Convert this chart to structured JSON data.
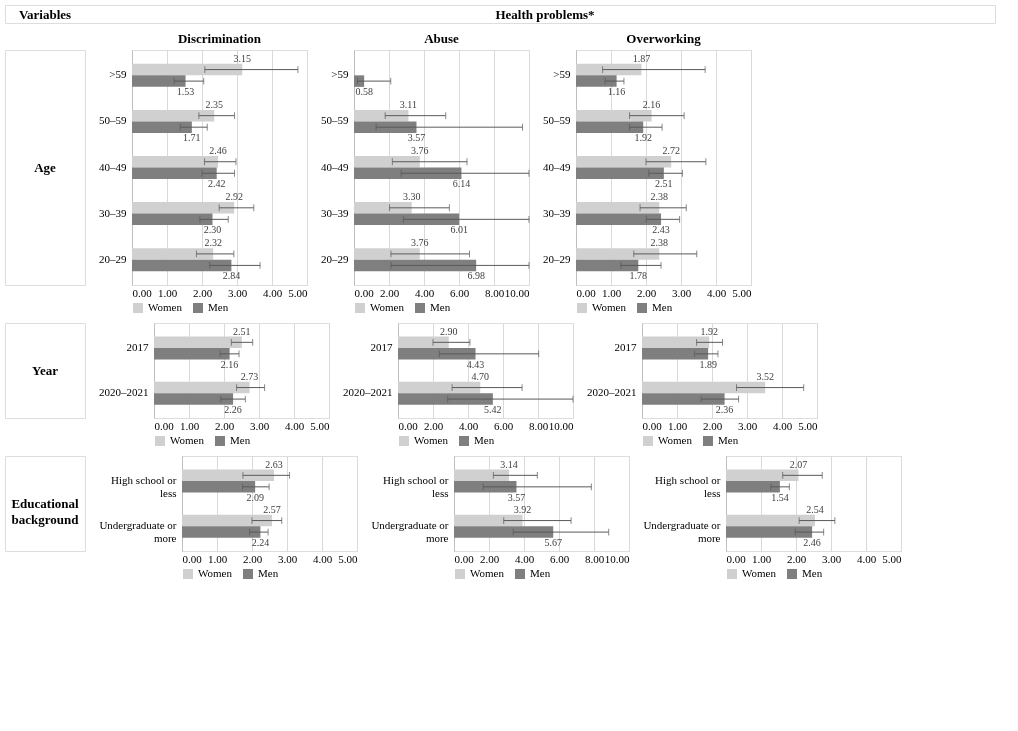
{
  "chart_data": [
    {
      "type": "bar",
      "orientation": "horizontal",
      "title": "Discrimination",
      "ylabel": "Age",
      "annotations": [
        "Variables",
        "Health problems*"
      ],
      "categories": [
        ">59",
        "50–59",
        "40–49",
        "30–39",
        "20–29"
      ],
      "series": [
        {
          "name": "Women",
          "color": "#d0d0d0",
          "values": [
            3.15,
            2.35,
            2.46,
            2.92,
            2.32
          ],
          "value_labels": [
            "3.15",
            "2.35",
            "2.46",
            "2.92",
            "2.32"
          ],
          "errors": [
            [
              2.08,
              4.74
            ],
            [
              1.91,
              2.93
            ],
            [
              2.07,
              2.97
            ],
            [
              2.49,
              3.48
            ],
            [
              1.84,
              2.91
            ]
          ]
        },
        {
          "name": "Men",
          "color": "#7f7f7f",
          "values": [
            1.53,
            1.71,
            2.42,
            2.3,
            2.84
          ],
          "value_labels": [
            "1.53",
            "1.71",
            "2.42",
            "2.30",
            "2.84"
          ],
          "errors": [
            [
              1.2,
              2.05
            ],
            [
              1.38,
              2.15
            ],
            [
              2.0,
              2.93
            ],
            [
              1.94,
              2.75
            ],
            [
              2.22,
              3.66
            ]
          ]
        }
      ],
      "xlim": [
        0,
        5
      ],
      "xticks": [
        {
          "value": 0,
          "label": "0.00"
        },
        {
          "value": 1,
          "label": "1.00"
        },
        {
          "value": 2,
          "label": "2.00"
        },
        {
          "value": 3,
          "label": "3.00"
        },
        {
          "value": 4,
          "label": "4.00"
        },
        {
          "value": 5,
          "label": "5.00"
        }
      ],
      "grid": "x",
      "legend": "bottom"
    },
    {
      "type": "bar",
      "orientation": "horizontal",
      "title": "Abuse",
      "categories": [
        ">59",
        "50–59",
        "40–49",
        "30–39",
        "20–29"
      ],
      "series": [
        {
          "name": "Women",
          "color": "#d0d0d0",
          "values": [
            null,
            3.11,
            3.76,
            3.3,
            3.76
          ],
          "value_labels": [
            null,
            "3.11",
            "3.76",
            "3.30",
            "3.76"
          ],
          "errors": [
            null,
            [
              1.78,
              5.24
            ],
            [
              2.19,
              6.46
            ],
            [
              2.03,
              5.45
            ],
            [
              2.11,
              6.6
            ]
          ]
        },
        {
          "name": "Men",
          "color": "#7f7f7f",
          "values": [
            0.58,
            3.57,
            6.14,
            6.01,
            6.98
          ],
          "value_labels": [
            "0.58",
            "3.57",
            "6.14",
            "6.01",
            "6.98"
          ],
          "errors": [
            [
              0.2,
              2.1
            ],
            [
              1.26,
              9.63
            ],
            [
              2.69,
              10
            ],
            [
              2.82,
              10
            ],
            [
              2.11,
              10
            ]
          ]
        }
      ],
      "xlim": [
        0,
        10
      ],
      "xticks": [
        {
          "value": 0,
          "label": "0.00"
        },
        {
          "value": 2,
          "label": "2.00"
        },
        {
          "value": 4,
          "label": "4.00"
        },
        {
          "value": 6,
          "label": "6.00"
        },
        {
          "value": 8,
          "label": "8.00"
        },
        {
          "value": 10,
          "label": "10.00"
        }
      ],
      "grid": "x",
      "legend": "bottom"
    },
    {
      "type": "bar",
      "orientation": "horizontal",
      "title": "Overworking",
      "categories": [
        ">59",
        "50–59",
        "40–49",
        "30–39",
        "20–29"
      ],
      "series": [
        {
          "name": "Women",
          "color": "#d0d0d0",
          "values": [
            1.87,
            2.16,
            2.72,
            2.38,
            2.38
          ],
          "value_labels": [
            "1.87",
            "2.16",
            "2.72",
            "2.38",
            "2.38"
          ],
          "errors": [
            [
              0.76,
              3.69
            ],
            [
              1.53,
              3.09
            ],
            [
              2.0,
              3.71
            ],
            [
              1.83,
              3.15
            ],
            [
              1.65,
              3.45
            ]
          ]
        },
        {
          "name": "Men",
          "color": "#7f7f7f",
          "values": [
            1.16,
            1.92,
            2.51,
            2.43,
            1.78
          ],
          "value_labels": [
            "1.16",
            "1.92",
            "2.51",
            "2.43",
            "1.78"
          ],
          "errors": [
            [
              0.83,
              1.37
            ],
            [
              1.53,
              2.46
            ],
            [
              2.08,
              3.04
            ],
            [
              2.01,
              2.96
            ],
            [
              1.28,
              2.43
            ]
          ]
        }
      ],
      "xlim": [
        0,
        5
      ],
      "xticks": [
        {
          "value": 0,
          "label": "0.00"
        },
        {
          "value": 1,
          "label": "1.00"
        },
        {
          "value": 2,
          "label": "2.00"
        },
        {
          "value": 3,
          "label": "3.00"
        },
        {
          "value": 4,
          "label": "4.00"
        },
        {
          "value": 5,
          "label": "5.00"
        }
      ],
      "grid": "x",
      "legend": "bottom"
    },
    {
      "type": "bar",
      "orientation": "horizontal",
      "ylabel": "Year",
      "categories": [
        "2017",
        "2020–2021"
      ],
      "series": [
        {
          "name": "Women",
          "color": "#d0d0d0",
          "values": [
            2.51,
            2.73
          ],
          "value_labels": [
            "2.51",
            "2.73"
          ],
          "errors": [
            [
              2.21,
              2.82
            ],
            [
              2.36,
              3.16
            ]
          ]
        },
        {
          "name": "Men",
          "color": "#7f7f7f",
          "values": [
            2.16,
            2.26
          ],
          "value_labels": [
            "2.16",
            "2.26"
          ],
          "errors": [
            [
              1.89,
              2.43
            ],
            [
              1.91,
              2.61
            ]
          ]
        }
      ],
      "xlim": [
        0,
        5
      ],
      "xticks": [
        {
          "value": 0,
          "label": "0.00"
        },
        {
          "value": 1,
          "label": "1.00"
        },
        {
          "value": 2,
          "label": "2.00"
        },
        {
          "value": 3,
          "label": "3.00"
        },
        {
          "value": 4,
          "label": "4.00"
        },
        {
          "value": 5,
          "label": "5.00"
        }
      ],
      "grid": "x",
      "legend": "bottom"
    },
    {
      "type": "bar",
      "orientation": "horizontal",
      "categories": [
        "2017",
        "2020–2021"
      ],
      "series": [
        {
          "name": "Women",
          "color": "#d0d0d0",
          "values": [
            2.9,
            4.7
          ],
          "value_labels": [
            "2.90",
            "4.70"
          ],
          "errors": [
            [
              2.0,
              4.11
            ],
            [
              3.09,
              7.09
            ]
          ]
        },
        {
          "name": "Men",
          "color": "#7f7f7f",
          "values": [
            4.43,
            5.42
          ],
          "value_labels": [
            "4.43",
            "5.42"
          ],
          "errors": [
            [
              2.36,
              8.04
            ],
            [
              2.84,
              10
            ]
          ]
        }
      ],
      "xlim": [
        0,
        10
      ],
      "xticks": [
        {
          "value": 0,
          "label": "0.00"
        },
        {
          "value": 2,
          "label": "2.00"
        },
        {
          "value": 4,
          "label": "4.00"
        },
        {
          "value": 6,
          "label": "6.00"
        },
        {
          "value": 8,
          "label": "8.00"
        },
        {
          "value": 10,
          "label": "10.00"
        }
      ],
      "grid": "x",
      "legend": "bottom"
    },
    {
      "type": "bar",
      "orientation": "horizontal",
      "categories": [
        "2017",
        "2020–2021"
      ],
      "series": [
        {
          "name": "Women",
          "color": "#d0d0d0",
          "values": [
            1.92,
            3.52
          ],
          "value_labels": [
            "1.92",
            "3.52"
          ],
          "errors": [
            [
              1.56,
              2.3
            ],
            [
              2.7,
              4.62
            ]
          ]
        },
        {
          "name": "Men",
          "color": "#7f7f7f",
          "values": [
            1.89,
            2.36
          ],
          "value_labels": [
            "1.89",
            "2.36"
          ],
          "errors": [
            [
              1.5,
              2.17
            ],
            [
              1.69,
              2.76
            ]
          ]
        }
      ],
      "xlim": [
        0,
        5
      ],
      "xticks": [
        {
          "value": 0,
          "label": "0.00"
        },
        {
          "value": 1,
          "label": "1.00"
        },
        {
          "value": 2,
          "label": "2.00"
        },
        {
          "value": 3,
          "label": "3.00"
        },
        {
          "value": 4,
          "label": "4.00"
        },
        {
          "value": 5,
          "label": "5.00"
        }
      ],
      "grid": "x",
      "legend": "bottom"
    },
    {
      "type": "bar",
      "orientation": "horizontal",
      "ylabel": "Educational background",
      "categories": [
        "High school or less",
        "Undergraduate or more"
      ],
      "series": [
        {
          "name": "Women",
          "color": "#d0d0d0",
          "values": [
            2.63,
            2.57
          ],
          "value_labels": [
            "2.63",
            "2.57"
          ],
          "errors": [
            [
              1.74,
              3.07
            ],
            [
              2.0,
              2.85
            ]
          ]
        },
        {
          "name": "Men",
          "color": "#7f7f7f",
          "values": [
            2.09,
            2.24
          ],
          "value_labels": [
            "2.09",
            "2.24"
          ],
          "errors": [
            [
              1.73,
              2.49
            ],
            [
              1.93,
              2.46
            ]
          ]
        }
      ],
      "xlim": [
        0,
        5
      ],
      "xticks": [
        {
          "value": 0,
          "label": "0.00"
        },
        {
          "value": 1,
          "label": "1.00"
        },
        {
          "value": 2,
          "label": "2.00"
        },
        {
          "value": 3,
          "label": "3.00"
        },
        {
          "value": 4,
          "label": "4.00"
        },
        {
          "value": 5,
          "label": "5.00"
        }
      ],
      "grid": "x",
      "legend": "bottom"
    },
    {
      "type": "bar",
      "orientation": "horizontal",
      "categories": [
        "High school or less",
        "Undergraduate or more"
      ],
      "series": [
        {
          "name": "Women",
          "color": "#d0d0d0",
          "values": [
            3.14,
            3.92
          ],
          "value_labels": [
            "3.14",
            "3.92"
          ],
          "errors": [
            [
              2.25,
              4.76
            ],
            [
              2.84,
              6.69
            ]
          ]
        },
        {
          "name": "Men",
          "color": "#7f7f7f",
          "values": [
            3.57,
            5.67
          ],
          "value_labels": [
            "3.57",
            "5.67"
          ],
          "errors": [
            [
              1.67,
              7.85
            ],
            [
              3.38,
              8.84
            ]
          ]
        }
      ],
      "xlim": [
        0,
        10
      ],
      "xticks": [
        {
          "value": 0,
          "label": "0.00"
        },
        {
          "value": 2,
          "label": "2.00"
        },
        {
          "value": 4,
          "label": "4.00"
        },
        {
          "value": 6,
          "label": "6.00"
        },
        {
          "value": 8,
          "label": "8.00"
        },
        {
          "value": 10,
          "label": "10.00"
        }
      ],
      "grid": "x",
      "legend": "bottom"
    },
    {
      "type": "bar",
      "orientation": "horizontal",
      "categories": [
        "High school or less",
        "Undergraduate or more"
      ],
      "series": [
        {
          "name": "Women",
          "color": "#d0d0d0",
          "values": [
            2.07,
            2.54
          ],
          "value_labels": [
            "2.07",
            "2.54"
          ],
          "errors": [
            [
              1.62,
              2.75
            ],
            [
              2.09,
              3.11
            ]
          ]
        },
        {
          "name": "Men",
          "color": "#7f7f7f",
          "values": [
            1.54,
            2.46
          ],
          "value_labels": [
            "1.54",
            "2.46"
          ],
          "errors": [
            [
              1.28,
              1.81
            ],
            [
              1.98,
              2.79
            ]
          ]
        }
      ],
      "xlim": [
        0,
        5
      ],
      "xticks": [
        {
          "value": 0,
          "label": "0.00"
        },
        {
          "value": 1,
          "label": "1.00"
        },
        {
          "value": 2,
          "label": "2.00"
        },
        {
          "value": 3,
          "label": "3.00"
        },
        {
          "value": 4,
          "label": "4.00"
        },
        {
          "value": 5,
          "label": "5.00"
        }
      ],
      "grid": "x",
      "legend": "bottom"
    }
  ]
}
